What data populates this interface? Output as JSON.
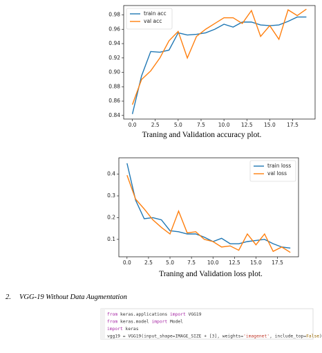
{
  "chart_data": [
    {
      "type": "line",
      "caption": "Traning and Validation accuracy plot.",
      "legend": "upper left",
      "x": [
        0,
        1,
        2,
        3,
        4,
        5,
        6,
        7,
        8,
        9,
        10,
        11,
        12,
        13,
        14,
        15,
        16,
        17,
        18,
        19
      ],
      "series": [
        {
          "name": "train acc",
          "color": "#1f77b4",
          "values": [
            0.842,
            0.895,
            0.929,
            0.928,
            0.931,
            0.955,
            0.952,
            0.953,
            0.955,
            0.96,
            0.967,
            0.963,
            0.97,
            0.97,
            0.966,
            0.965,
            0.966,
            0.971,
            0.977,
            0.977
          ]
        },
        {
          "name": "val acc",
          "color": "#ff7f0e",
          "values": [
            0.855,
            0.89,
            0.902,
            0.92,
            0.944,
            0.957,
            0.92,
            0.95,
            0.96,
            0.968,
            0.976,
            0.976,
            0.968,
            0.986,
            0.95,
            0.965,
            0.946,
            0.987,
            0.979,
            0.988
          ]
        }
      ],
      "xlim": [
        -0.95,
        19.95
      ],
      "xticks": [
        {
          "value": 0,
          "label": "0.0"
        },
        2.5,
        {
          "value": 5,
          "label": "5.0"
        },
        7.5,
        {
          "value": 10,
          "label": "10.0"
        },
        12.5,
        {
          "value": 15,
          "label": "15.0"
        },
        17.5
      ],
      "ylim": [
        0.835,
        0.993
      ],
      "yticks": [
        0.84,
        0.86,
        0.88,
        {
          "value": 0.9,
          "label": "0.90"
        },
        0.92,
        0.94,
        0.96,
        0.98
      ]
    },
    {
      "type": "line",
      "caption": "Traning and Validation loss plot.",
      "legend": "upper right",
      "x": [
        0,
        1,
        2,
        3,
        4,
        5,
        6,
        7,
        8,
        9,
        10,
        11,
        12,
        13,
        14,
        15,
        16,
        17,
        18,
        19
      ],
      "series": [
        {
          "name": "train loss",
          "color": "#1f77b4",
          "values": [
            0.45,
            0.28,
            0.195,
            0.2,
            0.19,
            0.14,
            0.135,
            0.125,
            0.125,
            0.11,
            0.09,
            0.105,
            0.08,
            0.08,
            0.09,
            0.095,
            0.1,
            0.08,
            0.065,
            0.06
          ]
        },
        {
          "name": "val loss",
          "color": "#ff7f0e",
          "values": [
            0.395,
            0.285,
            0.24,
            0.19,
            0.155,
            0.125,
            0.23,
            0.13,
            0.135,
            0.1,
            0.09,
            0.065,
            0.07,
            0.05,
            0.125,
            0.075,
            0.125,
            0.045,
            0.065,
            0.04
          ]
        }
      ],
      "xlim": [
        -0.95,
        19.95
      ],
      "xticks": [
        {
          "value": 0,
          "label": "0.0"
        },
        2.5,
        {
          "value": 5,
          "label": "5.0"
        },
        7.5,
        {
          "value": 10,
          "label": "10.0"
        },
        12.5,
        {
          "value": 15,
          "label": "15.0"
        },
        17.5
      ],
      "ylim": [
        0.02,
        0.475
      ],
      "yticks": [
        0.1,
        0.2,
        0.3,
        0.4
      ]
    }
  ],
  "heading": {
    "number": "2.",
    "title": "VGG-19 Without Data Augmentation"
  },
  "code": [
    "from keras.applications import VGG19",
    "from keras.model import Model",
    "import keras",
    "vgg19 = VGG19(input_shape=IMAGE_SIZE + [3], weights='imagenet', include_top=False)"
  ]
}
